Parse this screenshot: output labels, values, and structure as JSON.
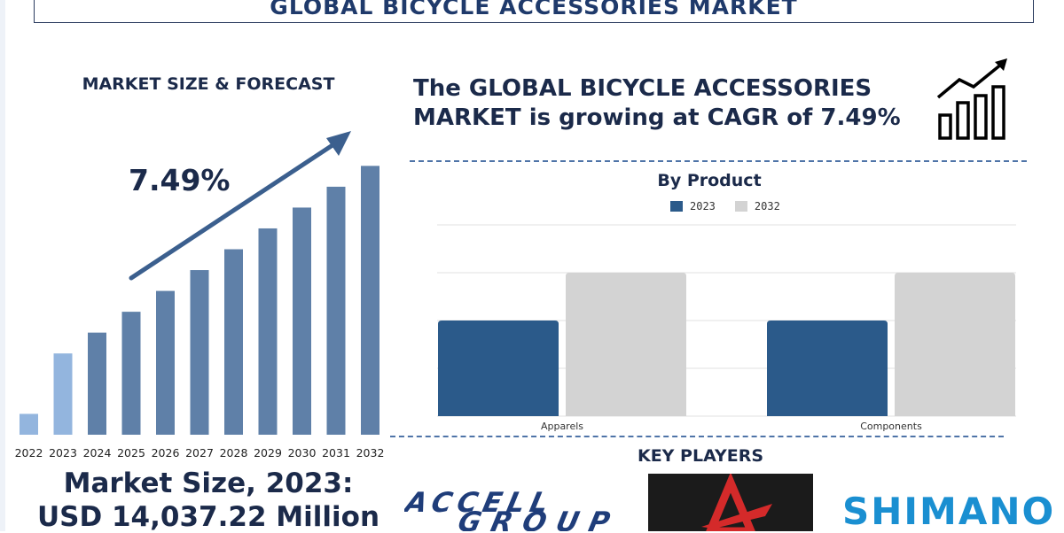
{
  "title": "GLOBAL BICYCLE ACCESSORIES MARKET",
  "left_panel": {
    "heading": "MARKET SIZE & FORECAST",
    "cagr_label": "7.49%",
    "market_size_line1": "Market Size, 2023:",
    "market_size_line2": "USD 14,037.22 Million"
  },
  "headline": "The GLOBAL BICYCLE ACCESSORIES MARKET is growing at CAGR of 7.49%",
  "key_players": {
    "title": "KEY PLAYERS",
    "logos": [
      {
        "name": "ACCELL GROUP",
        "line1": "ACCELL",
        "line2": "GROUP",
        "color": "#1f3d7a"
      },
      {
        "name": "",
        "color": "#d42a2a"
      },
      {
        "name": "SHIMANO",
        "color": "#1a8fd1"
      }
    ]
  },
  "colors": {
    "forecast_bar": "#5f80a8",
    "forecast_bar_light": "#93b5de",
    "arrow": "#3b5f8e",
    "series_2023": "#2b5a8a",
    "series_2032": "#d3d3d3"
  },
  "chart_data": [
    {
      "type": "bar",
      "categories": [
        "2022",
        "2023",
        "2024",
        "2025",
        "2026",
        "2027",
        "2028",
        "2029",
        "2030",
        "2031",
        "2032"
      ],
      "values": [
        1.0,
        3.9,
        4.9,
        5.9,
        6.9,
        7.9,
        8.9,
        9.9,
        10.9,
        11.9,
        12.9
      ],
      "highlight": [
        "light",
        "light",
        "dark",
        "dark",
        "dark",
        "dark",
        "dark",
        "dark",
        "dark",
        "dark",
        "dark"
      ],
      "ylim": [
        0,
        13
      ],
      "grid": false,
      "annotations": [
        "7.49%"
      ]
    },
    {
      "type": "bar",
      "title": "By Product",
      "categories": [
        "Apparels",
        "Components"
      ],
      "series": [
        {
          "name": "2023",
          "values": [
            2,
            2
          ]
        },
        {
          "name": "2032",
          "values": [
            3,
            3
          ]
        }
      ],
      "ylim": [
        0,
        4
      ],
      "grid": true,
      "legend": "top"
    }
  ]
}
